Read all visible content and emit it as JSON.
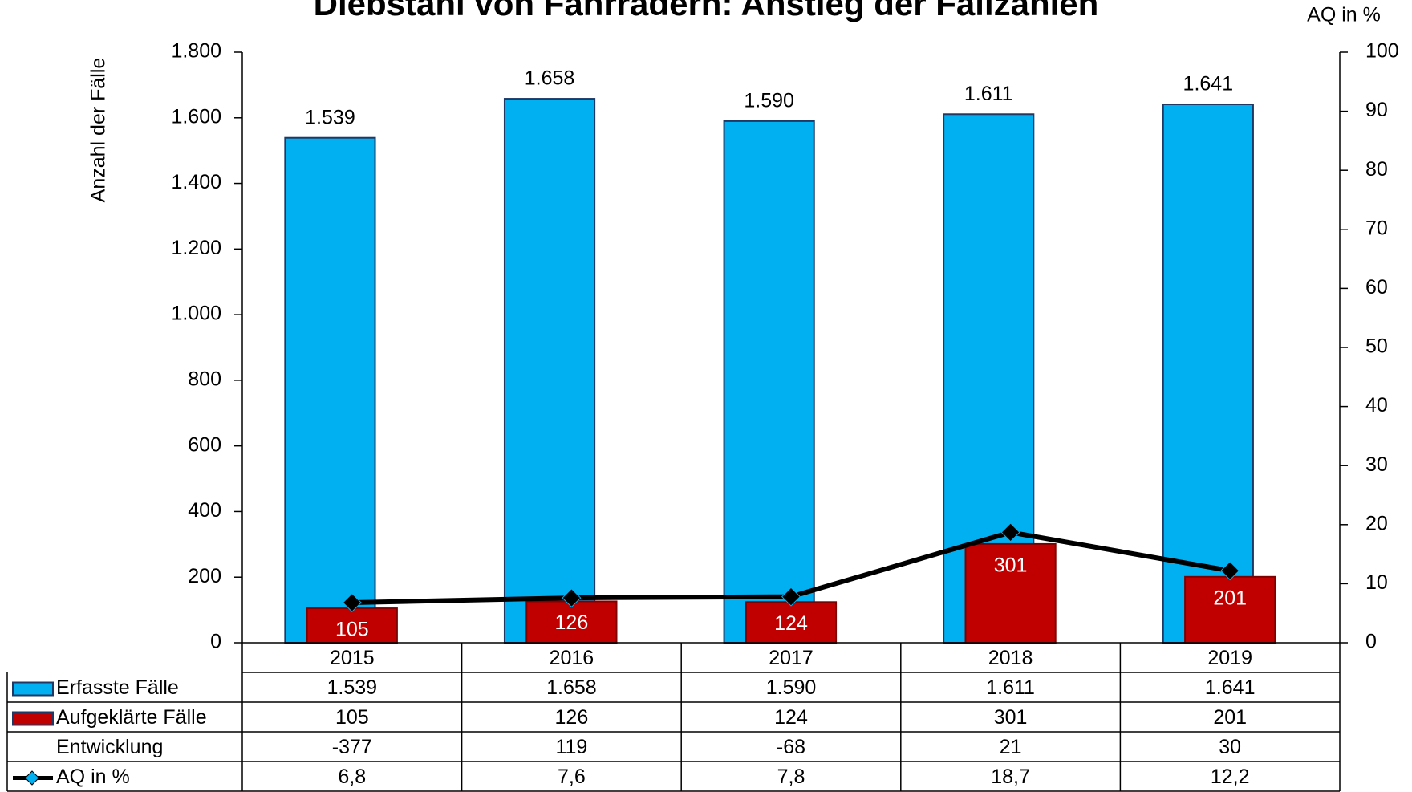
{
  "chart_data": {
    "type": "bar_line",
    "title": "Diebstahl von Fahrrädern: Anstieg der Fallzahlen",
    "ylabel": "Anzahl der Fälle",
    "y2label": "AQ in %",
    "categories": [
      "2015",
      "2016",
      "2017",
      "2018",
      "2019"
    ],
    "series": [
      {
        "name": "Erfasste Fälle",
        "color": "#00b0f0",
        "values": [
          1539,
          1658,
          1590,
          1611,
          1641
        ],
        "value_labels": [
          "1.539",
          "1.658",
          "1.590",
          "1.611",
          "1.641"
        ]
      },
      {
        "name": "Aufgeklärte Fälle",
        "color": "#c00000",
        "values": [
          105,
          126,
          124,
          301,
          201
        ]
      },
      {
        "name": "AQ in %",
        "color": "#000000",
        "axis": "y2",
        "values": [
          6.8,
          7.6,
          7.8,
          18.7,
          12.2
        ],
        "value_labels": [
          "6,8",
          "7,6",
          "7,8",
          "18,7",
          "12,2"
        ]
      }
    ],
    "table_rows": [
      {
        "name": "Entwicklung",
        "values": [
          -377,
          119,
          -68,
          21,
          30
        ]
      }
    ],
    "ylim": [
      0,
      1800
    ],
    "yticks": [
      0,
      200,
      400,
      600,
      800,
      {
        "value": 1000,
        "label": "1.000"
      },
      {
        "value": 1200,
        "label": "1.200"
      },
      {
        "value": 1400,
        "label": "1.400"
      },
      {
        "value": 1600,
        "label": "1.600"
      },
      {
        "value": 1800,
        "label": "1.800"
      }
    ],
    "y2lim": [
      0,
      100
    ],
    "y2ticks": [
      0,
      10,
      20,
      30,
      40,
      50,
      60,
      70,
      80,
      90,
      100
    ]
  }
}
